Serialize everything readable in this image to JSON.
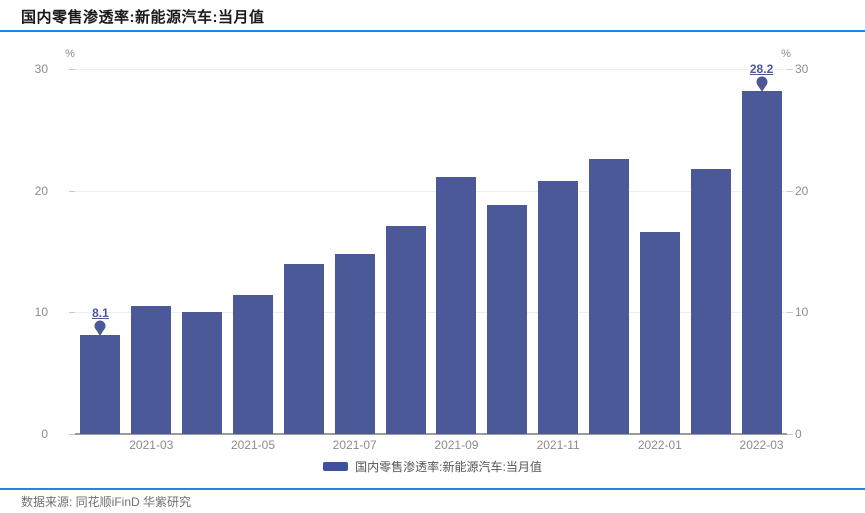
{
  "header": {
    "title": "国内零售渗透率:新能源汽车:当月值"
  },
  "axis": {
    "unit": "%"
  },
  "legend": {
    "label": "国内零售渗透率:新能源汽车:当月值"
  },
  "footer": {
    "source": "数据来源: 同花顺iFinD  华紫研究"
  },
  "colors": {
    "bar": "#4c5998",
    "legend_swatch": "#3e509f",
    "annotation": "#4c5998",
    "grid": "#ededf4",
    "axis_line": "#9b9b9b",
    "accent_rule": "#1c87e5"
  },
  "chart_data": {
    "type": "bar",
    "title": "国内零售渗透率:新能源汽车:当月值",
    "series_name": "国内零售渗透率:新能源汽车:当月值",
    "unit": "%",
    "categories": [
      "2021-02",
      "2021-03",
      "2021-04",
      "2021-05",
      "2021-06",
      "2021-07",
      "2021-08",
      "2021-09",
      "2021-10",
      "2021-11",
      "2021-12",
      "2022-01",
      "2022-02",
      "2022-03"
    ],
    "values": [
      8.1,
      10.5,
      10.0,
      11.4,
      14.0,
      14.8,
      17.1,
      21.1,
      18.8,
      20.8,
      22.6,
      16.6,
      21.8,
      28.2
    ],
    "x_tick_labels": [
      "2021-03",
      "2021-05",
      "2021-07",
      "2021-09",
      "2021-11",
      "2022-01",
      "2022-03"
    ],
    "y_ticks": [
      0,
      10,
      20,
      30
    ],
    "ylim": [
      0,
      30
    ],
    "grid": true,
    "legend_position": "bottom",
    "annotations": [
      {
        "category": "2021-02",
        "label": "8.1"
      },
      {
        "category": "2022-03",
        "label": "28.2"
      }
    ]
  }
}
